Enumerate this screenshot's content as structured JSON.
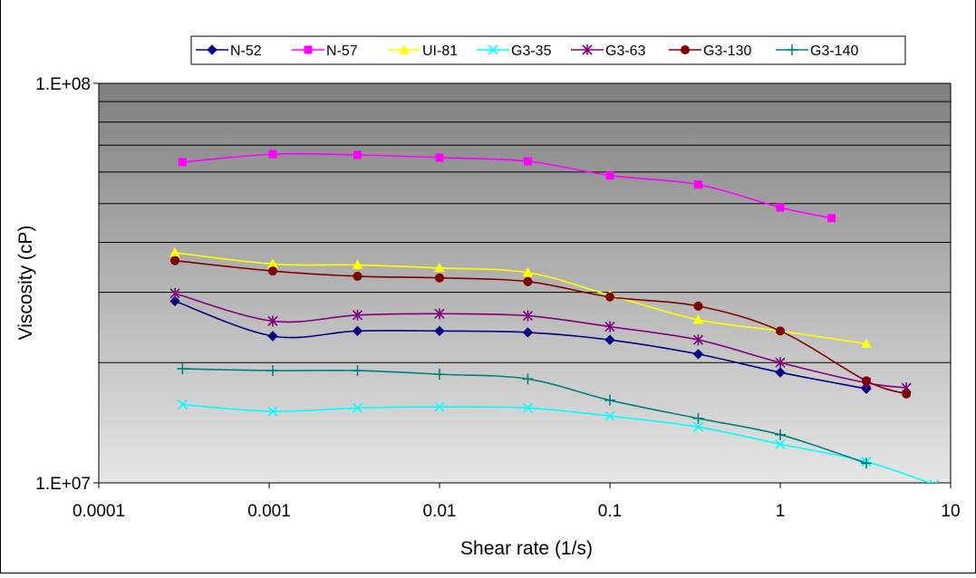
{
  "chart_data": {
    "type": "line",
    "title": "",
    "xlabel": "Shear rate (1/s)",
    "ylabel": "Viscosity (cP)",
    "x_scale": "log",
    "y_scale": "log",
    "xlim": [
      0.0001,
      10
    ],
    "ylim": [
      10000000,
      100000000
    ],
    "x_tick_labels": [
      "0.0001",
      "0.001",
      "0.01",
      "0.1",
      "1",
      "10"
    ],
    "x_tick_values": [
      0.0001,
      0.001,
      0.01,
      0.1,
      1,
      10
    ],
    "y_tick_labels": [
      "1.E+07",
      "1.E+08"
    ],
    "y_tick_values": [
      10000000,
      100000000
    ],
    "grid": true,
    "plot_background": [
      "#808080",
      "#e6e6e6"
    ],
    "legend_position": "top",
    "series": [
      {
        "name": "N-52",
        "color": "#000080",
        "marker": "diamond",
        "x": [
          0.00028,
          0.00105,
          0.0033,
          0.01,
          0.033,
          0.1,
          0.33,
          1,
          3.2
        ],
        "y": [
          28500000,
          23300000,
          24000000,
          24000000,
          23800000,
          22800000,
          21000000,
          18900000,
          17200000
        ]
      },
      {
        "name": "N-57",
        "color": "#ff00ff",
        "marker": "square",
        "x": [
          0.00031,
          0.00105,
          0.0033,
          0.01,
          0.033,
          0.1,
          0.33,
          1,
          2
        ],
        "y": [
          63500000,
          66500000,
          66200000,
          65200000,
          63800000,
          58800000,
          55800000,
          48900000,
          46000000
        ]
      },
      {
        "name": "UI-81",
        "color": "#ffff00",
        "marker": "triangle",
        "x": [
          0.00028,
          0.00105,
          0.0033,
          0.01,
          0.033,
          0.1,
          0.33,
          1,
          3.2
        ],
        "y": [
          37700000,
          35300000,
          35100000,
          34500000,
          33600000,
          29500000,
          25600000,
          24000000,
          22300000
        ]
      },
      {
        "name": "G3-35",
        "color": "#00ffff",
        "marker": "x",
        "x": [
          0.00031,
          0.00105,
          0.0033,
          0.01,
          0.033,
          0.1,
          0.33,
          1,
          3.2,
          8
        ],
        "y": [
          15700000,
          15100000,
          15400000,
          15500000,
          15400000,
          14700000,
          13800000,
          12500000,
          11300000,
          9900000
        ]
      },
      {
        "name": "G3-63",
        "color": "#800080",
        "marker": "star",
        "x": [
          0.00028,
          0.00105,
          0.0033,
          0.01,
          0.033,
          0.1,
          0.33,
          1,
          3.2,
          5.5
        ],
        "y": [
          29800000,
          25400000,
          26300000,
          26500000,
          26200000,
          24600000,
          22800000,
          20000000,
          17800000,
          17300000
        ]
      },
      {
        "name": "G3-130",
        "color": "#800000",
        "marker": "circle",
        "x": [
          0.00028,
          0.00105,
          0.0033,
          0.01,
          0.033,
          0.1,
          0.33,
          1,
          3.2,
          5.5
        ],
        "y": [
          36000000,
          33900000,
          32900000,
          32600000,
          31900000,
          29200000,
          27700000,
          24000000,
          18000000,
          16700000
        ]
      },
      {
        "name": "G3-140",
        "color": "#008080",
        "marker": "plus",
        "x": [
          0.00031,
          0.00105,
          0.0033,
          0.01,
          0.033,
          0.1,
          0.33,
          1,
          3.2
        ],
        "y": [
          19300000,
          19100000,
          19100000,
          18700000,
          18200000,
          16100000,
          14500000,
          13200000,
          11200000
        ]
      }
    ]
  }
}
